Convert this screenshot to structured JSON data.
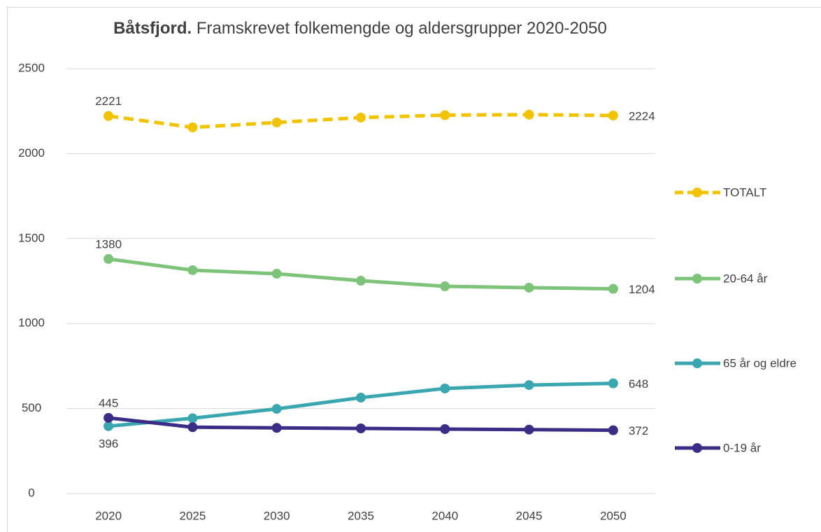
{
  "chart_data": {
    "type": "line",
    "title": [
      "Båtsfjord.",
      "Framskrevet folkemengde og aldersgrupper 2020-2050"
    ],
    "categories": [
      "2020",
      "2025",
      "2030",
      "2035",
      "2040",
      "2045",
      "2050"
    ],
    "series": [
      {
        "name": "TOTALT",
        "color": "#f2c300",
        "dashed": true,
        "values": [
          2221,
          2154,
          2183,
          2212,
          2226,
          2229,
          2224
        ]
      },
      {
        "name": "20-64 år",
        "color": "#7dc37a",
        "dashed": false,
        "values": [
          1380,
          1314,
          1293,
          1252,
          1219,
          1211,
          1204
        ]
      },
      {
        "name": "65 år og eldre",
        "color": "#3aa6b0",
        "dashed": false,
        "values": [
          396,
          443,
          498,
          564,
          618,
          638,
          648
        ]
      },
      {
        "name": "0-19 år",
        "color": "#3b2c85",
        "dashed": false,
        "values": [
          445,
          390,
          386,
          383,
          379,
          376,
          372
        ]
      }
    ],
    "ylim": [
      0,
      2500
    ],
    "yticks": [
      0,
      500,
      1000,
      1500,
      2000,
      2500
    ],
    "grid": true,
    "legend": "right"
  }
}
